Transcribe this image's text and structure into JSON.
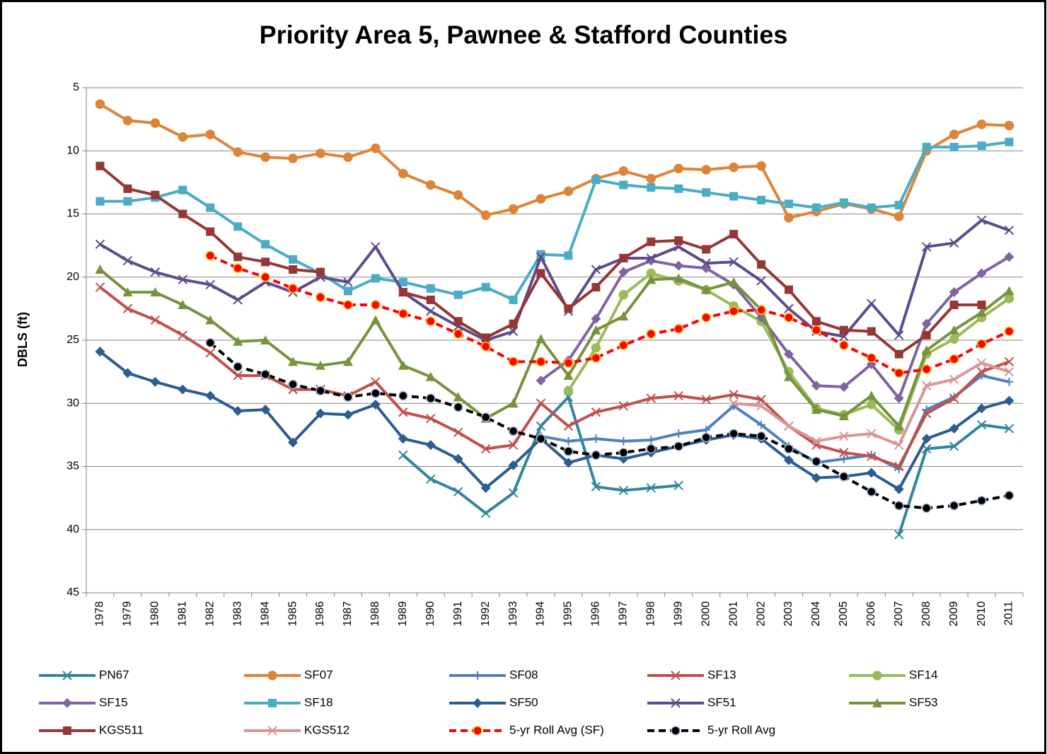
{
  "chart_data": {
    "type": "line",
    "title": "Priority Area 5, Pawnee & Stafford Counties",
    "y_label": "DBLS (ft)",
    "categories": [
      "1978",
      "1979",
      "1980",
      "1981",
      "1982",
      "1983",
      "1984",
      "1985",
      "1986",
      "1987",
      "1988",
      "1989",
      "1990",
      "1991",
      "1992",
      "1993",
      "1994",
      "1995",
      "1996",
      "1997",
      "1998",
      "1999",
      "2000",
      "2001",
      "2002",
      "2003",
      "2004",
      "2005",
      "2006",
      "2007",
      "2008",
      "2009",
      "2010",
      "2011"
    ],
    "ylim": [
      5,
      45
    ],
    "y_reversed": true,
    "yticks": [
      5,
      10,
      15,
      20,
      25,
      30,
      35,
      40,
      45
    ],
    "grid": true,
    "series": [
      {
        "name": "PN67",
        "color": "#31859c",
        "marker": "x",
        "values": [
          null,
          null,
          null,
          null,
          null,
          null,
          null,
          null,
          null,
          null,
          null,
          34.1,
          36.0,
          37.0,
          38.7,
          37.1,
          31.8,
          29.5,
          36.6,
          36.9,
          36.7,
          36.5,
          null,
          null,
          null,
          null,
          null,
          null,
          null,
          40.4,
          33.6,
          33.4,
          31.7,
          32.0
        ]
      },
      {
        "name": "SF07",
        "color": "#dd8438",
        "marker": "circle",
        "values": [
          6.3,
          7.6,
          7.8,
          8.9,
          8.7,
          10.1,
          10.5,
          10.6,
          10.2,
          10.5,
          9.8,
          11.8,
          12.7,
          13.5,
          15.1,
          14.6,
          13.8,
          13.2,
          12.2,
          11.6,
          12.2,
          11.4,
          11.5,
          11.3,
          11.2,
          15.3,
          14.8,
          14.2,
          14.6,
          15.2,
          10.0,
          8.7,
          7.9,
          8.0
        ]
      },
      {
        "name": "SF08",
        "color": "#4f81bd",
        "marker": "plus",
        "values": [
          null,
          null,
          null,
          null,
          null,
          null,
          null,
          null,
          null,
          null,
          null,
          null,
          null,
          null,
          null,
          null,
          32.6,
          33.0,
          32.8,
          33.0,
          32.9,
          32.4,
          32.1,
          30.2,
          31.7,
          33.4,
          34.7,
          34.4,
          34.1,
          35.2,
          30.5,
          29.5,
          27.8,
          28.3
        ]
      },
      {
        "name": "SF13",
        "color": "#c0504d",
        "marker": "x",
        "values": [
          20.8,
          22.5,
          23.4,
          24.6,
          26.0,
          27.8,
          27.8,
          28.9,
          28.9,
          29.4,
          28.3,
          30.7,
          31.2,
          32.3,
          33.6,
          33.3,
          30.0,
          31.8,
          30.7,
          30.2,
          29.6,
          29.4,
          29.7,
          29.3,
          29.7,
          31.8,
          33.3,
          33.9,
          34.2,
          35.0,
          30.8,
          29.6,
          27.5,
          26.7
        ]
      },
      {
        "name": "SF14",
        "color": "#9bbb59",
        "marker": "circle",
        "values": [
          null,
          null,
          null,
          null,
          null,
          null,
          null,
          null,
          null,
          null,
          null,
          null,
          null,
          null,
          null,
          null,
          null,
          29.0,
          25.6,
          21.4,
          19.7,
          20.3,
          21.0,
          22.3,
          23.5,
          27.5,
          30.4,
          30.9,
          30.1,
          32.1,
          26.1,
          24.9,
          23.2,
          21.7
        ]
      },
      {
        "name": "SF15",
        "color": "#8064a2",
        "marker": "diamond",
        "values": [
          null,
          null,
          null,
          null,
          null,
          null,
          null,
          null,
          null,
          null,
          null,
          null,
          null,
          null,
          null,
          null,
          28.2,
          26.6,
          23.3,
          19.6,
          18.7,
          19.1,
          19.3,
          20.6,
          23.2,
          26.1,
          28.6,
          28.7,
          26.9,
          29.6,
          23.7,
          21.2,
          19.7,
          18.4
        ]
      },
      {
        "name": "SF18",
        "color": "#4bacc6",
        "marker": "square",
        "values": [
          14.0,
          14.0,
          13.7,
          13.1,
          14.5,
          16.0,
          17.4,
          18.6,
          19.7,
          21.1,
          20.1,
          20.4,
          20.9,
          21.4,
          20.8,
          21.8,
          18.2,
          18.3,
          12.3,
          12.7,
          12.9,
          13.0,
          13.3,
          13.6,
          13.9,
          14.2,
          14.5,
          14.1,
          14.5,
          14.3,
          9.7,
          9.7,
          9.6,
          9.3
        ]
      },
      {
        "name": "SF50",
        "color": "#2c5d8f",
        "marker": "diamond",
        "values": [
          25.9,
          27.6,
          28.3,
          28.9,
          29.4,
          30.6,
          30.5,
          33.1,
          30.8,
          30.9,
          30.1,
          32.8,
          33.3,
          34.4,
          36.7,
          34.9,
          32.8,
          34.7,
          34.1,
          34.4,
          33.9,
          33.4,
          32.9,
          32.5,
          32.8,
          34.5,
          35.9,
          35.8,
          35.5,
          36.8,
          32.8,
          32.0,
          30.4,
          29.8
        ]
      },
      {
        "name": "SF51",
        "color": "#5f4b8b",
        "marker": "x",
        "values": [
          17.4,
          18.7,
          19.6,
          20.2,
          20.6,
          21.8,
          20.4,
          21.2,
          20.0,
          20.4,
          17.6,
          21.2,
          22.7,
          23.9,
          25.0,
          24.3,
          18.4,
          22.7,
          19.4,
          18.5,
          18.5,
          17.6,
          18.9,
          18.8,
          20.3,
          22.5,
          24.3,
          24.7,
          22.1,
          24.6,
          17.6,
          17.3,
          15.5,
          16.3
        ]
      },
      {
        "name": "SF53",
        "color": "#77933c",
        "marker": "triangle",
        "values": [
          19.4,
          21.2,
          21.2,
          22.2,
          23.4,
          25.1,
          25.0,
          26.7,
          27.0,
          26.7,
          23.4,
          27.0,
          27.9,
          29.5,
          31.2,
          30.0,
          24.9,
          27.8,
          24.2,
          23.1,
          20.2,
          20.1,
          21.0,
          20.4,
          22.6,
          27.9,
          30.5,
          31.0,
          29.4,
          31.8,
          25.8,
          24.2,
          22.8,
          21.1
        ]
      },
      {
        "name": "KGS511",
        "color": "#953735",
        "marker": "square",
        "values": [
          11.2,
          13.0,
          13.5,
          15.0,
          16.4,
          18.4,
          18.8,
          19.4,
          19.6,
          null,
          null,
          21.2,
          21.8,
          23.5,
          24.8,
          23.7,
          19.7,
          22.5,
          20.8,
          18.5,
          17.2,
          17.1,
          17.8,
          16.6,
          19.0,
          21.0,
          23.5,
          24.2,
          24.3,
          26.1,
          24.6,
          22.2,
          22.2,
          null
        ]
      },
      {
        "name": "KGS512",
        "color": "#d99694",
        "marker": "x",
        "values": [
          null,
          null,
          null,
          null,
          null,
          null,
          null,
          null,
          null,
          null,
          null,
          null,
          null,
          null,
          null,
          null,
          null,
          null,
          null,
          null,
          null,
          null,
          null,
          30.0,
          30.2,
          31.8,
          33.0,
          32.6,
          32.4,
          33.3,
          28.6,
          28.1,
          26.8,
          27.5
        ]
      },
      {
        "name": "5-yr Roll Avg (SF)",
        "color": "#ff0000",
        "marker": "circle",
        "marker_edge": "#ffc000",
        "dashed": true,
        "values": [
          null,
          null,
          null,
          null,
          18.3,
          19.3,
          20.0,
          20.9,
          21.6,
          22.2,
          22.2,
          22.9,
          23.5,
          24.5,
          25.5,
          26.7,
          26.7,
          26.8,
          26.4,
          25.4,
          24.5,
          24.1,
          23.2,
          22.7,
          22.6,
          23.2,
          24.2,
          25.4,
          26.4,
          27.6,
          27.3,
          26.5,
          25.3,
          24.3
        ]
      },
      {
        "name": "5-yr Roll Avg",
        "color": "#000000",
        "marker": "circle",
        "marker_edge": "#a6b9d6",
        "dashed": true,
        "values": [
          null,
          null,
          null,
          null,
          25.2,
          27.1,
          27.7,
          28.5,
          29.0,
          29.5,
          29.2,
          29.4,
          29.6,
          30.3,
          31.1,
          32.2,
          32.8,
          33.8,
          34.1,
          33.9,
          33.6,
          33.4,
          32.7,
          32.4,
          32.6,
          33.6,
          34.6,
          35.8,
          37.0,
          38.1,
          38.3,
          38.1,
          37.7,
          37.3
        ]
      }
    ]
  }
}
